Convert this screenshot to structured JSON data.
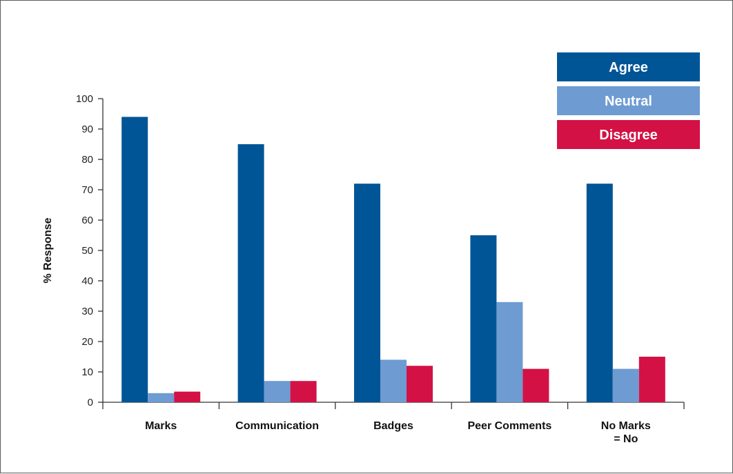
{
  "chart_data": {
    "type": "bar",
    "title": "",
    "xlabel": "",
    "ylabel": "% Response",
    "ylim": [
      0,
      100
    ],
    "yticks": [
      0,
      10,
      20,
      30,
      40,
      50,
      60,
      70,
      80,
      90,
      100
    ],
    "categories": [
      [
        "Marks"
      ],
      [
        "Communication"
      ],
      [
        "Badges"
      ],
      [
        "Peer Comments"
      ],
      [
        "No Marks",
        "= No"
      ]
    ],
    "series": [
      {
        "name": "Agree",
        "color": "#005596",
        "values": [
          94,
          85,
          72,
          55,
          72
        ]
      },
      {
        "name": "Neutral",
        "color": "#6e9bd2",
        "values": [
          3,
          7,
          14,
          33,
          11
        ]
      },
      {
        "name": "Disagree",
        "color": "#d31145",
        "values": [
          3.5,
          7,
          12,
          11,
          15
        ]
      }
    ],
    "legend_position": "top-right",
    "grid": false
  }
}
